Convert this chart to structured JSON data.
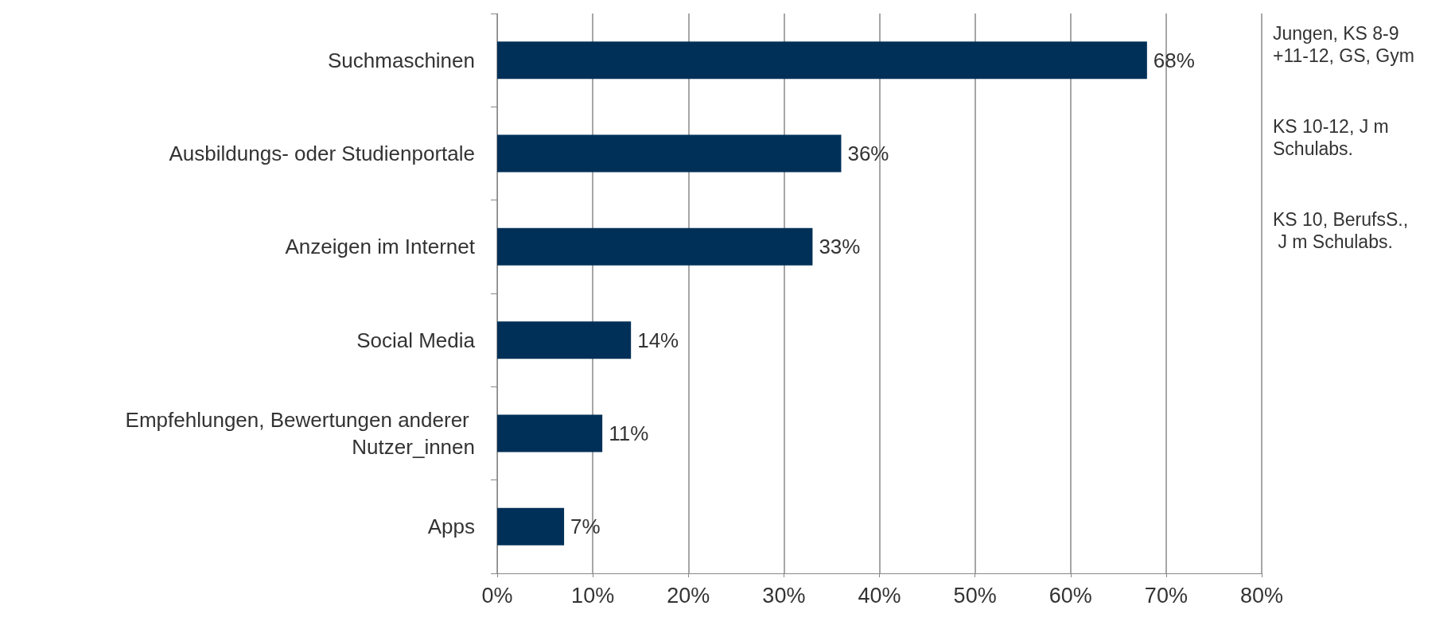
{
  "chart_data": {
    "type": "bar",
    "orientation": "horizontal",
    "categories": [
      "Suchmaschinen",
      "Ausbildungs- oder Studienportale",
      "Anzeigen im Internet",
      "Social Media",
      "Empfehlungen, Bewertungen anderer Nutzer_innen",
      "Apps"
    ],
    "values": [
      68,
      36,
      33,
      14,
      11,
      7
    ],
    "value_labels": [
      "68%",
      "36%",
      "33%",
      "14%",
      "11%",
      "7%"
    ],
    "color": "#003057",
    "xlim": [
      0,
      80
    ],
    "xticks": [
      {
        "value": 0,
        "label": "0%"
      },
      {
        "value": 10,
        "label": "10%"
      },
      {
        "value": 20,
        "label": "20%"
      },
      {
        "value": 30,
        "label": "30%"
      },
      {
        "value": 40,
        "label": "40%"
      },
      {
        "value": 50,
        "label": "50%"
      },
      {
        "value": 60,
        "label": "60%"
      },
      {
        "value": 70,
        "label": "70%"
      },
      {
        "value": 80,
        "label": "80%"
      }
    ],
    "grid": "x",
    "annotations": [
      "Jungen, KS 8-9 +11-12, GS, Gym",
      "KS 10-12, J m Schulabs.",
      "KS 10, BerufsS., J m Schulabs."
    ]
  }
}
